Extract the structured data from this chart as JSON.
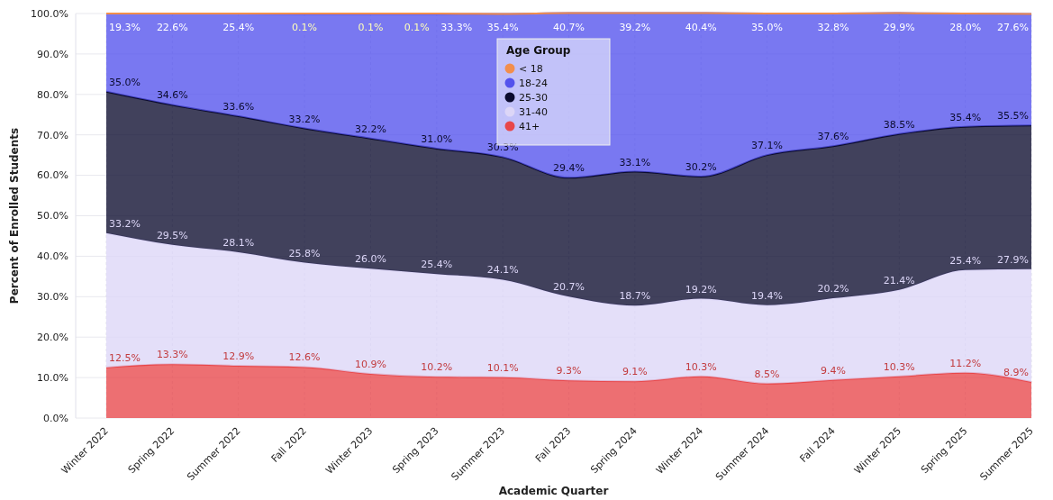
{
  "chart_data": {
    "type": "area",
    "stacked": true,
    "xlabel": "Academic Quarter",
    "ylabel": "Percent of Enrolled Students",
    "legend_title": "Age Group",
    "legend": "top",
    "grid": true,
    "marker": "none",
    "categories": [
      "Winter 2022",
      "Spring 2022",
      "Summer 2022",
      "Fall 2022",
      "Winter 2023",
      "Spring 2023",
      "Summer 2023",
      "Fall 2023",
      "Spring 2024",
      "Winter 2024",
      "Summer 2024",
      "Fall 2024",
      "Winter 2025",
      "Spring 2025",
      "Summer 2025"
    ],
    "ylim": [
      0,
      100
    ],
    "yticks": [
      {
        "value": 0,
        "label": "0.0%"
      },
      {
        "value": 10,
        "label": "10.0%"
      },
      {
        "value": 20,
        "label": "20.0%"
      },
      {
        "value": 30,
        "label": "30.0%"
      },
      {
        "value": 40,
        "label": "40.0%"
      },
      {
        "value": 50,
        "label": "50.0%"
      },
      {
        "value": 60,
        "label": "60.0%"
      },
      {
        "value": 70,
        "label": "70.0%"
      },
      {
        "value": 80,
        "label": "80.0%"
      },
      {
        "value": 90,
        "label": "90.0%"
      },
      {
        "value": 100,
        "label": "100.0%"
      }
    ],
    "series": [
      {
        "name": "41+",
        "color": "#e8474a",
        "values": [
          12.5,
          13.3,
          12.9,
          12.6,
          10.9,
          10.2,
          10.1,
          9.3,
          9.1,
          10.3,
          8.5,
          9.4,
          10.3,
          11.2,
          8.9
        ],
        "value_labels": [
          "12.5%",
          "13.3%",
          "12.9%",
          "12.6%",
          "10.9%",
          "10.2%",
          "10.1%",
          "9.3%",
          "9.1%",
          "10.3%",
          "8.5%",
          "9.4%",
          "10.3%",
          "11.2%",
          "8.9%"
        ]
      },
      {
        "name": "31-40",
        "color": "#dcd6f7",
        "values": [
          33.2,
          29.5,
          28.1,
          25.8,
          26.0,
          25.4,
          24.1,
          20.7,
          18.7,
          19.2,
          19.4,
          20.2,
          21.4,
          25.4,
          27.9
        ],
        "value_labels": [
          "33.2%",
          "29.5%",
          "28.1%",
          "25.8%",
          "26.0%",
          "25.4%",
          "24.1%",
          "20.7%",
          "18.7%",
          "19.2%",
          "19.4%",
          "20.2%",
          "21.4%",
          "25.4%",
          "27.9%"
        ]
      },
      {
        "name": "25-30",
        "color": "#0b0b2e",
        "values": [
          35.0,
          34.6,
          33.6,
          33.2,
          32.2,
          31.0,
          30.3,
          29.4,
          33.1,
          30.2,
          37.1,
          37.6,
          38.5,
          35.4,
          35.5
        ],
        "value_labels": [
          "35.0%",
          "34.6%",
          "33.6%",
          "33.2%",
          "32.2%",
          "31.0%",
          "30.3%",
          "29.4%",
          "33.1%",
          "30.2%",
          "37.1%",
          "37.6%",
          "38.5%",
          "35.4%",
          "35.5%"
        ]
      },
      {
        "name": "18-24",
        "color": "#5352ed",
        "values": [
          19.3,
          22.6,
          25.4,
          28.3,
          30.8,
          33.3,
          35.4,
          40.7,
          39.2,
          40.4,
          35.0,
          32.8,
          29.9,
          28.0,
          27.6
        ],
        "value_labels": [
          "19.3%",
          "22.6%",
          "25.4%",
          null,
          null,
          "33.3%",
          "35.4%",
          "40.7%",
          "39.2%",
          "40.4%",
          "35.0%",
          "32.8%",
          "29.9%",
          "28.0%",
          "27.6%"
        ]
      },
      {
        "name": "< 18",
        "color": "#f28e4c",
        "values": [
          0,
          0,
          0,
          0.1,
          0.1,
          0.1,
          0,
          0,
          0,
          0,
          0,
          0,
          0,
          0,
          0
        ],
        "value_labels": [
          null,
          null,
          null,
          "0.1%",
          "0.1%",
          "0.1%",
          null,
          null,
          null,
          null,
          null,
          null,
          null,
          null,
          null
        ]
      }
    ]
  }
}
